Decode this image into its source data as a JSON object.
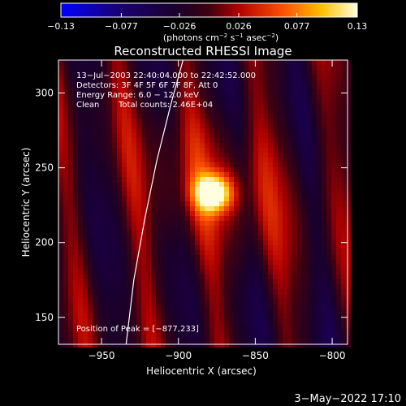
{
  "chart_data": {
    "type": "heatmap",
    "title": "Reconstructed RHESSI Image",
    "xlabel": "Heliocentric X (arcsec)",
    "ylabel": "Heliocentric Y (arcsec)",
    "xlim": [
      -978,
      -790
    ],
    "ylim": [
      132,
      322
    ],
    "xticks": [
      -950,
      -900,
      -850,
      -800
    ],
    "xtick_labels": [
      "−950",
      "−900",
      "−850",
      "−800"
    ],
    "yticks": [
      150,
      200,
      250,
      300
    ],
    "ytick_labels": [
      "150",
      "200",
      "250",
      "300"
    ],
    "colorbar": {
      "range": [
        -0.13,
        0.13
      ],
      "ticks": [
        -0.13,
        -0.077,
        -0.026,
        0.026,
        0.077,
        0.13
      ],
      "tick_labels": [
        "−0.13",
        "−0.077",
        "−0.026",
        "0.026",
        "0.077",
        "0.13"
      ],
      "units_prefix": "(photons cm",
      "units_exp1": "−2",
      "units_mid1": " s",
      "units_exp2": "−1",
      "units_mid2": " asec",
      "units_exp3": "−2",
      "units_suffix": ")"
    },
    "peak": {
      "x": -877,
      "y": 233
    },
    "annotations": {
      "time": "13−Jul−2003 22:40:04.000 to 22:42:52.000",
      "detectors": "Detectors: 3F 4F 5F 6F 7F 8F, Att 0",
      "energy": "Energy Range: 6.0 − 12.0 keV",
      "clean_label": "Clean",
      "counts": "Total counts: 2.46E+04",
      "peak": "Position of Peak = [−877,233]"
    },
    "limb_curve": [
      [
        -934,
        132
      ],
      [
        -929,
        175
      ],
      [
        -922,
        215
      ],
      [
        -914,
        255
      ],
      [
        -905,
        292
      ],
      [
        -897,
        322
      ]
    ],
    "colors": {
      "background": "#000000",
      "text": "#ffffff",
      "limb": "#ffffff"
    }
  },
  "footer": {
    "date": "3−May−2022 17:10"
  }
}
